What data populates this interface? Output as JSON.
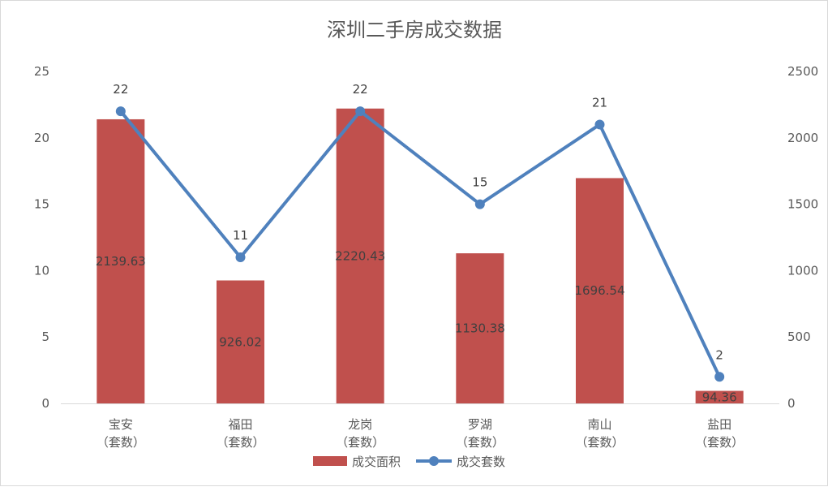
{
  "chart_data": {
    "type": "bar",
    "title": "深圳二手房成交数据",
    "categories": [
      "宝安\n（套数）",
      "福田\n（套数）",
      "龙岗\n（套数）",
      "罗湖\n（套数）",
      "南山\n（套数）",
      "盐田\n（套数）"
    ],
    "series": [
      {
        "name": "成交面积",
        "type": "bar",
        "axis": "right",
        "color": "#C0504D",
        "values": [
          2139.63,
          926.02,
          2220.43,
          1130.38,
          1696.54,
          94.36
        ]
      },
      {
        "name": "成交套数",
        "type": "line",
        "axis": "left",
        "color": "#4F81BD",
        "values": [
          22,
          11,
          22,
          15,
          21,
          2
        ]
      }
    ],
    "ylim_left": [
      0,
      25
    ],
    "yticks_left": [
      0,
      5,
      10,
      15,
      20,
      25
    ],
    "ylim_right": [
      0,
      2500
    ],
    "yticks_right": [
      0,
      500,
      1000,
      1500,
      2000,
      2500
    ],
    "grid": false,
    "legend": "bottom"
  }
}
